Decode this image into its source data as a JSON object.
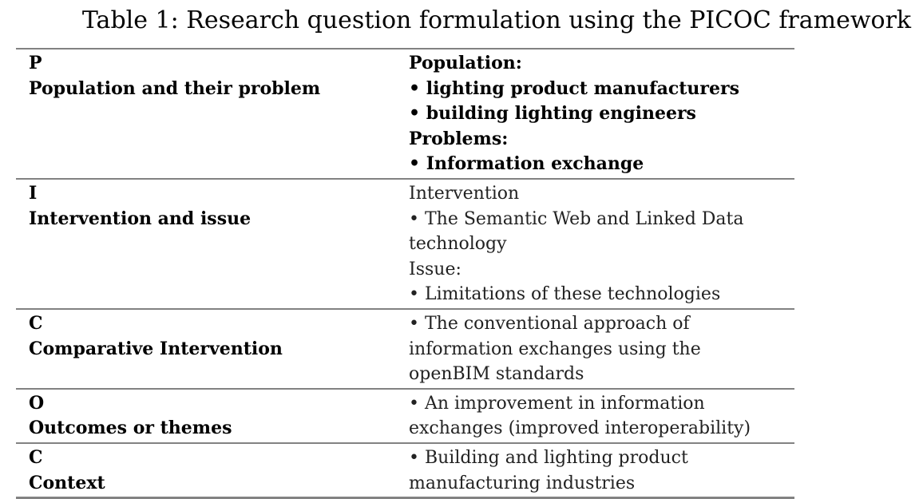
{
  "title": "Table 1: Research question formulation using the PICOC framework",
  "styles": {
    "rule_color": "#828282",
    "bold_text_color": "#000000",
    "regular_text_color": "#222222",
    "background_color": "#ffffff"
  },
  "table": {
    "rows": [
      {
        "key": "P",
        "label": "Population and their problem",
        "content_bold": true,
        "lines": [
          "Population:",
          "• lighting product manufacturers",
          "• building lighting engineers",
          "Problems:",
          "• Information exchange"
        ]
      },
      {
        "key": "I",
        "label": "Intervention and issue",
        "content_bold": false,
        "lines": [
          "Intervention",
          "• The Semantic Web and Linked Data",
          "technology",
          "Issue:",
          "• Limitations of these technologies"
        ]
      },
      {
        "key": "C",
        "label": "Comparative Intervention",
        "content_bold": false,
        "lines": [
          "• The conventional approach of",
          "information exchanges using the",
          "openBIM standards"
        ]
      },
      {
        "key": "O",
        "label": "Outcomes or themes",
        "content_bold": false,
        "lines": [
          "• An improvement in information",
          "exchanges (improved interoperability)"
        ]
      },
      {
        "key": "C",
        "label": "Context",
        "content_bold": false,
        "lines": [
          "• Building and lighting product",
          "manufacturing industries"
        ]
      }
    ]
  }
}
